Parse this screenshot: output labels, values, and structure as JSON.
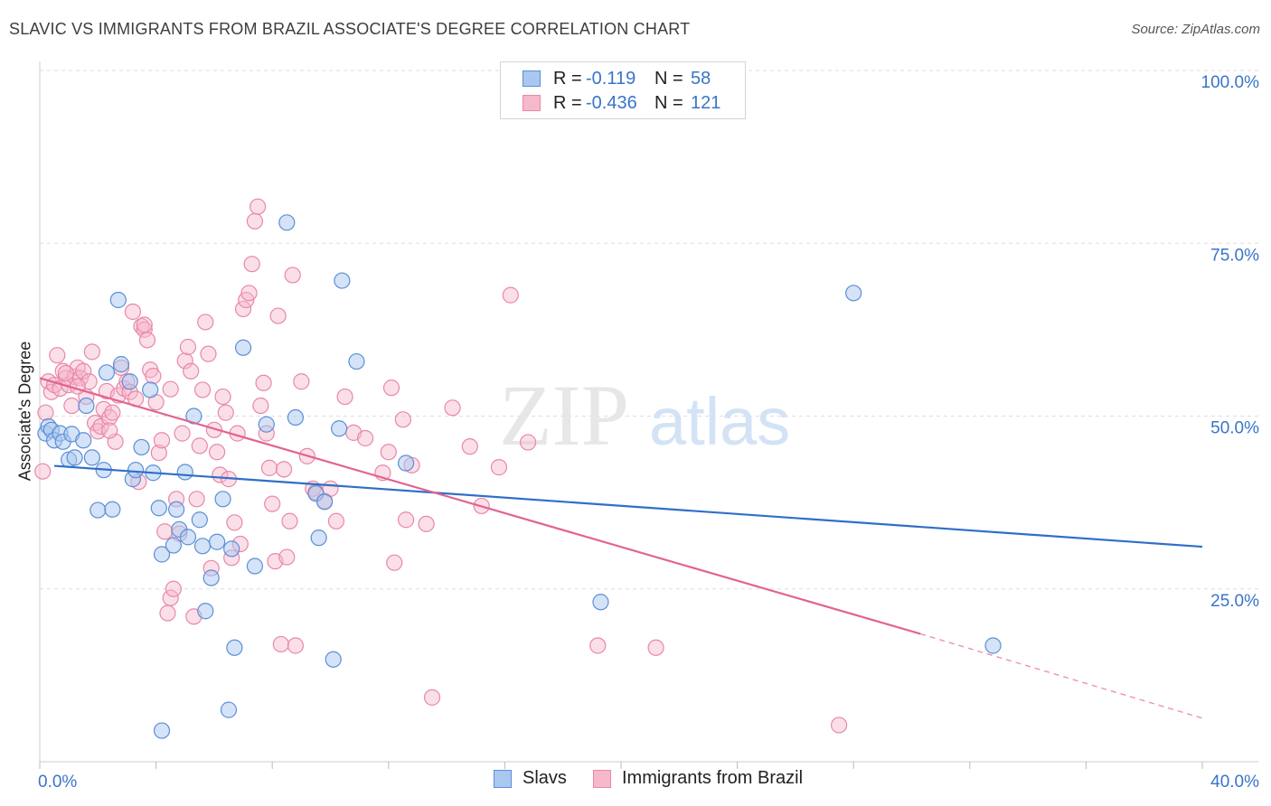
{
  "title": "SLAVIC VS IMMIGRANTS FROM BRAZIL ASSOCIATE'S DEGREE CORRELATION CHART",
  "source": "Source: ZipAtlas.com",
  "watermark": {
    "part1": "ZIP",
    "part2": "atlas"
  },
  "legend": {
    "series1": {
      "r_label": "R =",
      "r_value": "-0.119",
      "n_label": "N =",
      "n_value": "58"
    },
    "series2": {
      "r_label": "R =",
      "r_value": "-0.436",
      "n_label": "N =",
      "n_value": "121"
    }
  },
  "colors": {
    "slavs_fill": "#aac7f0",
    "slavs_stroke": "#5b8fd6",
    "slavs_line": "#2f6fc8",
    "brazil_fill": "#f6b8cb",
    "brazil_stroke": "#e888a8",
    "brazil_line": "#e36390",
    "tick_text": "#3a74c8",
    "grid": "#dddddd"
  },
  "chart_data": {
    "type": "scatter",
    "title": "SLAVIC VS IMMIGRANTS FROM BRAZIL ASSOCIATE'S DEGREE CORRELATION CHART",
    "xlabel": "",
    "ylabel": "Associate's Degree",
    "xlim": [
      0,
      40
    ],
    "ylim": [
      0,
      100
    ],
    "x_tick_labels": [
      "0.0%",
      "40.0%"
    ],
    "y_ticks": [
      25,
      50,
      75,
      100
    ],
    "y_tick_labels": [
      "25.0%",
      "50.0%",
      "75.0%",
      "100.0%"
    ],
    "series": [
      {
        "name": "Slavs",
        "r": -0.119,
        "n": 58,
        "trend": {
          "x_start": 0.5,
          "y_start": 42.8,
          "x_end": 40,
          "y_end": 31.1
        },
        "points": [
          [
            0.2,
            47.5
          ],
          [
            0.3,
            48.5
          ],
          [
            0.4,
            48.0
          ],
          [
            0.5,
            46.5
          ],
          [
            0.7,
            47.5
          ],
          [
            0.8,
            46.3
          ],
          [
            1.0,
            43.7
          ],
          [
            1.1,
            47.4
          ],
          [
            1.2,
            44.0
          ],
          [
            1.5,
            46.5
          ],
          [
            1.6,
            51.5
          ],
          [
            1.8,
            44.0
          ],
          [
            2.0,
            36.4
          ],
          [
            2.2,
            42.2
          ],
          [
            2.3,
            56.3
          ],
          [
            2.5,
            36.5
          ],
          [
            2.7,
            66.8
          ],
          [
            2.8,
            57.5
          ],
          [
            3.1,
            55.0
          ],
          [
            3.2,
            40.9
          ],
          [
            3.3,
            42.2
          ],
          [
            3.5,
            45.5
          ],
          [
            3.8,
            53.8
          ],
          [
            3.9,
            41.8
          ],
          [
            4.1,
            36.7
          ],
          [
            4.2,
            30.0
          ],
          [
            4.6,
            31.3
          ],
          [
            4.7,
            36.5
          ],
          [
            4.8,
            33.6
          ],
          [
            5.0,
            41.9
          ],
          [
            5.1,
            32.5
          ],
          [
            5.3,
            50.0
          ],
          [
            5.5,
            35.0
          ],
          [
            5.6,
            31.2
          ],
          [
            5.7,
            21.8
          ],
          [
            5.9,
            26.6
          ],
          [
            6.1,
            31.8
          ],
          [
            6.3,
            38.0
          ],
          [
            6.6,
            30.8
          ],
          [
            6.7,
            16.5
          ],
          [
            7.0,
            59.9
          ],
          [
            7.4,
            28.3
          ],
          [
            7.8,
            48.8
          ],
          [
            8.5,
            78.0
          ],
          [
            8.8,
            49.8
          ],
          [
            9.5,
            38.8
          ],
          [
            9.6,
            32.4
          ],
          [
            9.8,
            37.6
          ],
          [
            10.1,
            14.8
          ],
          [
            10.3,
            48.2
          ],
          [
            10.4,
            69.6
          ],
          [
            10.9,
            57.9
          ],
          [
            12.6,
            43.2
          ],
          [
            19.3,
            23.1
          ],
          [
            28.0,
            67.8
          ],
          [
            32.8,
            16.8
          ],
          [
            6.5,
            7.5
          ],
          [
            4.2,
            4.5
          ]
        ]
      },
      {
        "name": "Immigrants from Brazil",
        "r": -0.436,
        "n": 121,
        "trend": {
          "x_start": 0,
          "y_start": 55.5,
          "x_end": 30.3,
          "y_end": 18.5,
          "dash_x_end": 40,
          "dash_y_end": 6.3
        },
        "points": [
          [
            0.1,
            42.0
          ],
          [
            0.2,
            50.5
          ],
          [
            0.3,
            55.0
          ],
          [
            0.4,
            53.5
          ],
          [
            0.5,
            54.5
          ],
          [
            0.6,
            58.8
          ],
          [
            0.7,
            54.0
          ],
          [
            0.8,
            56.5
          ],
          [
            0.9,
            55.5
          ],
          [
            1.0,
            54.5
          ],
          [
            1.1,
            51.5
          ],
          [
            1.2,
            55.7
          ],
          [
            1.3,
            57.0
          ],
          [
            1.4,
            55.5
          ],
          [
            1.5,
            56.5
          ],
          [
            1.6,
            52.8
          ],
          [
            1.7,
            55.0
          ],
          [
            1.8,
            59.3
          ],
          [
            1.9,
            49.0
          ],
          [
            2.0,
            47.8
          ],
          [
            2.1,
            48.5
          ],
          [
            2.2,
            51.0
          ],
          [
            2.3,
            53.6
          ],
          [
            2.4,
            49.8
          ],
          [
            2.5,
            50.5
          ],
          [
            2.6,
            46.3
          ],
          [
            2.7,
            53.0
          ],
          [
            2.8,
            57.0
          ],
          [
            2.9,
            54.0
          ],
          [
            3.0,
            55.0
          ],
          [
            3.1,
            53.5
          ],
          [
            3.2,
            65.1
          ],
          [
            3.3,
            52.5
          ],
          [
            3.4,
            40.5
          ],
          [
            3.5,
            63.0
          ],
          [
            3.6,
            62.5
          ],
          [
            3.7,
            61.0
          ],
          [
            3.8,
            56.7
          ],
          [
            3.9,
            55.8
          ],
          [
            4.0,
            52.0
          ],
          [
            4.1,
            44.7
          ],
          [
            4.2,
            46.5
          ],
          [
            4.3,
            33.3
          ],
          [
            4.4,
            21.5
          ],
          [
            4.5,
            23.7
          ],
          [
            4.6,
            25.0
          ],
          [
            4.7,
            38.0
          ],
          [
            4.8,
            33.0
          ],
          [
            4.9,
            47.5
          ],
          [
            5.0,
            58.0
          ],
          [
            5.1,
            60.0
          ],
          [
            5.2,
            56.5
          ],
          [
            5.3,
            21.0
          ],
          [
            5.4,
            38.0
          ],
          [
            5.5,
            45.7
          ],
          [
            5.6,
            53.8
          ],
          [
            5.7,
            63.6
          ],
          [
            5.8,
            59.0
          ],
          [
            5.9,
            28.0
          ],
          [
            6.0,
            48.0
          ],
          [
            6.1,
            44.8
          ],
          [
            6.2,
            41.5
          ],
          [
            6.3,
            52.8
          ],
          [
            6.4,
            50.5
          ],
          [
            6.5,
            40.9
          ],
          [
            6.6,
            29.5
          ],
          [
            6.7,
            34.6
          ],
          [
            6.8,
            47.5
          ],
          [
            6.9,
            31.5
          ],
          [
            7.0,
            65.5
          ],
          [
            7.1,
            66.8
          ],
          [
            7.2,
            67.8
          ],
          [
            7.3,
            72.0
          ],
          [
            7.4,
            78.2
          ],
          [
            7.5,
            80.3
          ],
          [
            7.6,
            51.5
          ],
          [
            7.7,
            54.8
          ],
          [
            7.8,
            47.5
          ],
          [
            7.9,
            42.5
          ],
          [
            8.0,
            37.3
          ],
          [
            8.1,
            29.0
          ],
          [
            8.2,
            64.5
          ],
          [
            8.3,
            17.0
          ],
          [
            8.4,
            42.3
          ],
          [
            8.5,
            29.6
          ],
          [
            8.6,
            34.8
          ],
          [
            8.7,
            70.4
          ],
          [
            8.8,
            16.8
          ],
          [
            9.0,
            55.0
          ],
          [
            9.2,
            44.2
          ],
          [
            9.4,
            39.5
          ],
          [
            9.5,
            39.0
          ],
          [
            9.8,
            37.7
          ],
          [
            10.0,
            39.5
          ],
          [
            10.2,
            34.8
          ],
          [
            10.5,
            52.8
          ],
          [
            10.8,
            47.6
          ],
          [
            11.2,
            46.8
          ],
          [
            11.8,
            41.8
          ],
          [
            12.0,
            44.8
          ],
          [
            12.1,
            54.1
          ],
          [
            12.2,
            28.8
          ],
          [
            12.5,
            49.5
          ],
          [
            12.6,
            35.0
          ],
          [
            12.8,
            42.9
          ],
          [
            13.3,
            34.4
          ],
          [
            13.5,
            9.3
          ],
          [
            14.2,
            51.2
          ],
          [
            14.8,
            45.6
          ],
          [
            15.2,
            37.0
          ],
          [
            15.8,
            42.6
          ],
          [
            16.2,
            67.5
          ],
          [
            16.8,
            46.2
          ],
          [
            19.2,
            16.8
          ],
          [
            21.2,
            16.5
          ],
          [
            27.5,
            5.3
          ],
          [
            0.9,
            56.2
          ],
          [
            1.3,
            54.3
          ],
          [
            2.4,
            47.9
          ],
          [
            3.6,
            63.2
          ],
          [
            4.5,
            53.9
          ]
        ]
      }
    ]
  }
}
